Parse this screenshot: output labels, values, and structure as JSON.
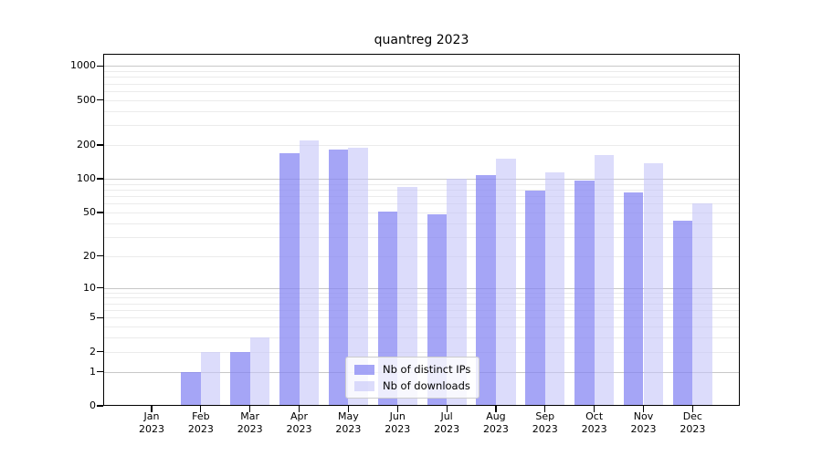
{
  "title": "quantreg 2023",
  "legend": {
    "items": [
      {
        "label": "Nb of distinct IPs",
        "color": "rgba(130,130,242,0.72)"
      },
      {
        "label": "Nb of downloads",
        "color": "rgba(196,196,248,0.60)"
      }
    ]
  },
  "colors": {
    "ips_bar_on_white": "#a9a9f7",
    "downloads_bar_on_white": "#dcdcf9",
    "major_grid": "#c8c8c8",
    "minor_grid": "#ebebeb",
    "frame": "#000000"
  },
  "chart_data": {
    "type": "bar",
    "title": "quantreg 2023",
    "categories": [
      "Jan 2023",
      "Feb 2023",
      "Mar 2023",
      "Apr 2023",
      "May 2023",
      "Jun 2023",
      "Jul 2023",
      "Aug 2023",
      "Sep 2023",
      "Oct 2023",
      "Nov 2023",
      "Dec 2023"
    ],
    "x_tick_labels": [
      [
        "Jan",
        "2023"
      ],
      [
        "Feb",
        "2023"
      ],
      [
        "Mar",
        "2023"
      ],
      [
        "Apr",
        "2023"
      ],
      [
        "May",
        "2023"
      ],
      [
        "Jun",
        "2023"
      ],
      [
        "Jul",
        "2023"
      ],
      [
        "Aug",
        "2023"
      ],
      [
        "Sep",
        "2023"
      ],
      [
        "Oct",
        "2023"
      ],
      [
        "Nov",
        "2023"
      ],
      [
        "Dec",
        "2023"
      ]
    ],
    "series": [
      {
        "name": "Nb of distinct IPs",
        "color": "rgba(130,130,242,0.72)",
        "values": [
          0,
          1,
          2,
          170,
          182,
          51,
          48,
          107,
          78,
          96,
          75,
          42
        ]
      },
      {
        "name": "Nb of downloads",
        "color": "rgba(196,196,248,0.60)",
        "values": [
          0,
          2,
          3,
          220,
          190,
          85,
          100,
          152,
          115,
          163,
          138,
          60
        ]
      }
    ],
    "xlabel": "",
    "ylabel": "",
    "y_scale": "log10(1+v)",
    "y_ticks": [
      0,
      1,
      2,
      5,
      10,
      20,
      50,
      100,
      200,
      500,
      1000
    ],
    "ylim": [
      0,
      1300
    ],
    "grid": true,
    "legend_position": "inside lower-center"
  }
}
